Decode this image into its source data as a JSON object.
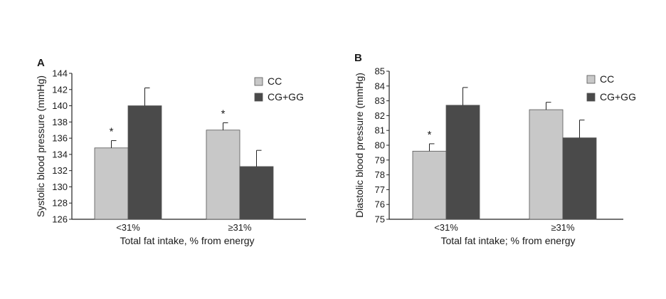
{
  "colors": {
    "cc": "#c8c8c8",
    "cg_gg": "#4a4a4a",
    "axis": "#222222",
    "edge": "#555555"
  },
  "chart_data": [
    {
      "type": "bar",
      "panel": "A",
      "categories": [
        "<31%",
        "≥31%"
      ],
      "xlabel": "Total fat intake, % from energy",
      "ylabel": "Systolic blood pressure (mmHg)",
      "ylim": [
        126,
        144
      ],
      "yticks": [
        126,
        128,
        130,
        132,
        134,
        136,
        138,
        140,
        142,
        144
      ],
      "series": [
        {
          "name": "CC",
          "values": [
            134.8,
            137.0
          ],
          "errors": [
            0.9,
            0.9
          ]
        },
        {
          "name": "CG+GG",
          "values": [
            140.0,
            132.5
          ],
          "errors": [
            2.2,
            2.0
          ]
        }
      ],
      "annotations": [
        {
          "text": "*",
          "category": 0,
          "series": 0
        },
        {
          "text": "*",
          "category": 1,
          "series": 0
        }
      ],
      "legend": "top-right"
    },
    {
      "type": "bar",
      "panel": "B",
      "categories": [
        "<31%",
        "≥31%"
      ],
      "xlabel": "Total fat intake; % from energy",
      "ylabel": "Diastolic blood pressure (mmHg)",
      "ylim": [
        75,
        85
      ],
      "yticks": [
        75,
        76,
        77,
        78,
        79,
        80,
        81,
        82,
        83,
        84,
        85
      ],
      "series": [
        {
          "name": "CC",
          "values": [
            79.6,
            82.4
          ],
          "errors": [
            0.5,
            0.5
          ]
        },
        {
          "name": "CG+GG",
          "values": [
            82.7,
            80.5
          ],
          "errors": [
            1.2,
            1.2
          ]
        }
      ],
      "annotations": [
        {
          "text": "*",
          "category": 0,
          "series": 0
        }
      ],
      "legend": "top-right"
    }
  ]
}
